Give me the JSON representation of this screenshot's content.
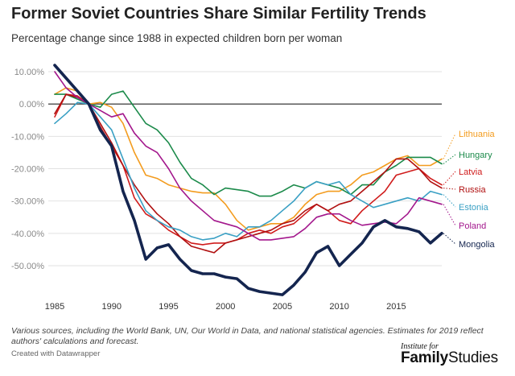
{
  "chart_data": {
    "type": "line",
    "title": "Former Soviet Countries Share Similar Fertility Trends",
    "subtitle": "Percentage change since 1988 in expected children born per woman",
    "ylim": [
      -60,
      13
    ],
    "xlim": [
      1985,
      2019
    ],
    "x_ticks": [
      1985,
      1990,
      1995,
      2000,
      2005,
      2010,
      2015
    ],
    "y_ticks": [
      "10.00%",
      "0.00%",
      "-10.00%",
      "-20.00%",
      "-30.00%",
      "-40.00%",
      "-50.00%"
    ],
    "y_tick_values": [
      10,
      0,
      -10,
      -20,
      -30,
      -40,
      -50
    ],
    "grid": true,
    "legend_position": "right, inline labels",
    "x": [
      1985,
      1986,
      1987,
      1988,
      1989,
      1990,
      1991,
      1992,
      1993,
      1994,
      1995,
      1996,
      1997,
      1998,
      1999,
      2000,
      2001,
      2002,
      2003,
      2004,
      2005,
      2006,
      2007,
      2008,
      2009,
      2010,
      2011,
      2012,
      2013,
      2014,
      2015,
      2016,
      2017,
      2018,
      2019
    ],
    "series": [
      {
        "name": "Lithuania",
        "color": "#f39c1f",
        "values": [
          3,
          5,
          4,
          0,
          0.5,
          -1,
          -6,
          -15,
          -22,
          -23,
          -25,
          -26,
          -27,
          -27.5,
          -27.5,
          -31,
          -36,
          -39,
          -38,
          -37,
          -37,
          -35,
          -31,
          -28,
          -27,
          -27,
          -25,
          -22,
          -21,
          -19,
          -17,
          -16,
          -19,
          -19,
          -17
        ]
      },
      {
        "name": "Hungary",
        "color": "#1b8a4a",
        "values": [
          3,
          3,
          1.5,
          0,
          -1,
          3,
          4,
          -1,
          -6,
          -8,
          -12,
          -18,
          -23,
          -25,
          -28,
          -26,
          -26.5,
          -27,
          -28.5,
          -28.5,
          -27,
          -25,
          -26,
          -24,
          -25,
          -26,
          -28,
          -25,
          -25,
          -21,
          -19,
          -16.5,
          -16.5,
          -16.5,
          -18.5
        ]
      },
      {
        "name": "Latvia",
        "color": "#d01c1c",
        "values": [
          -4,
          3,
          2.5,
          0,
          -7,
          -13,
          -19,
          -29,
          -34,
          -36,
          -39,
          -41,
          -43,
          -43.5,
          -43,
          -43,
          -42,
          -40,
          -39,
          -40,
          -38,
          -37,
          -34,
          -31,
          -33,
          -36,
          -37,
          -33,
          -30,
          -27,
          -22,
          -21,
          -20,
          -23,
          -25
        ]
      },
      {
        "name": "Russia",
        "color": "#b01010",
        "values": [
          -3,
          3,
          2,
          0,
          -6,
          -12,
          -19,
          -25,
          -30,
          -34,
          -37,
          -41,
          -44,
          -45,
          -46,
          -43,
          -42,
          -41,
          -40,
          -39,
          -37,
          -36,
          -33,
          -31,
          -33,
          -31,
          -30,
          -27,
          -24,
          -21,
          -17,
          -17,
          -20,
          -24,
          -26
        ]
      },
      {
        "name": "Estonia",
        "color": "#3aa0c4",
        "values": [
          -6,
          -3,
          0.5,
          0,
          -4,
          -8,
          -17,
          -26,
          -33,
          -36,
          -38,
          -39,
          -41,
          -42,
          -41.5,
          -40,
          -41,
          -38,
          -38,
          -36,
          -33,
          -30,
          -26,
          -24,
          -25,
          -24,
          -28,
          -30,
          -32,
          -31,
          -30,
          -29,
          -30,
          -27,
          -28
        ]
      },
      {
        "name": "Poland",
        "color": "#a3178c",
        "values": [
          10,
          5,
          2,
          0,
          -2,
          -4,
          -3,
          -9,
          -13,
          -15,
          -20,
          -26,
          -30,
          -33,
          -36,
          -37,
          -38,
          -40,
          -42,
          -42,
          -41.5,
          -41,
          -38.5,
          -35,
          -34,
          -34,
          -36,
          -37.5,
          -37,
          -36.5,
          -37,
          -34,
          -29,
          -30,
          -31
        ]
      },
      {
        "name": "Mongolia",
        "color": "#14254f",
        "values": [
          12,
          8,
          4,
          0,
          -8,
          -13,
          -27,
          -36,
          -48,
          -44.5,
          -43.5,
          -48,
          -51.5,
          -52.5,
          -52.5,
          -53.5,
          -54,
          -57,
          -58,
          -58.5,
          -59,
          -56,
          -52,
          -46,
          -44,
          -50,
          -46.5,
          -43,
          -38,
          -36,
          -38,
          -38.5,
          -39.5,
          -43,
          -40
        ]
      }
    ]
  },
  "note": "Various sources, including the World Bank, UN, Our World in Data, and national statistical agencies. Estimates for 2019 reflect authors' calculations and forecast.",
  "credit": "Created with Datawrapper",
  "logo": {
    "small": "Institute for",
    "big_bold": "Family",
    "big_regular": "Studies"
  }
}
